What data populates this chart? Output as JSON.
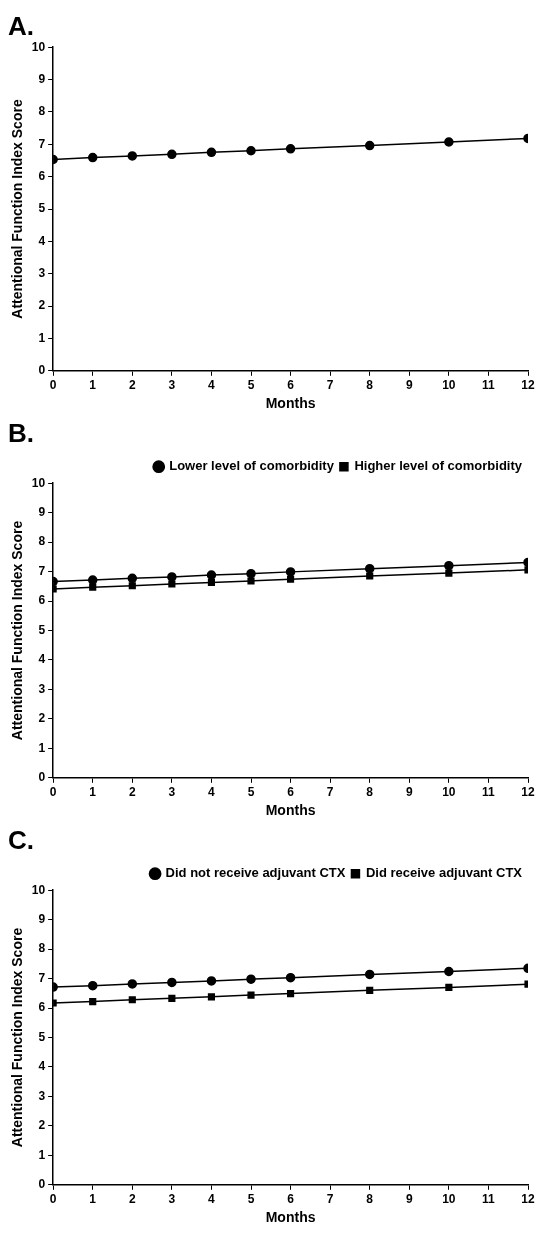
{
  "chart_data": [
    {
      "type": "line",
      "title": "A.",
      "xlabel": "Months",
      "ylabel": "Attentional Function Index Score",
      "x": [
        0,
        1,
        2,
        3,
        4,
        5,
        6,
        8,
        10,
        12
      ],
      "xlim": [
        0,
        12
      ],
      "xticks": [
        0,
        1,
        2,
        3,
        4,
        5,
        6,
        7,
        8,
        9,
        10,
        11,
        12
      ],
      "ylim": [
        0,
        10
      ],
      "yticks": [
        0,
        1,
        2,
        3,
        4,
        5,
        6,
        7,
        8,
        9,
        10
      ],
      "grid": false,
      "legend": false,
      "marker": "circle",
      "line_style": "solid",
      "series": [
        {
          "color": "#000000",
          "values": [
            6.53,
            6.59,
            6.64,
            6.69,
            6.75,
            6.8,
            6.86,
            6.96,
            7.07,
            7.18
          ]
        }
      ]
    },
    {
      "type": "line",
      "title": "B.",
      "xlabel": "Months",
      "ylabel": "Attentional Function Index Score",
      "x": [
        0,
        1,
        2,
        3,
        4,
        5,
        6,
        8,
        10,
        12
      ],
      "xlim": [
        0,
        12
      ],
      "xticks": [
        0,
        1,
        2,
        3,
        4,
        5,
        6,
        7,
        8,
        9,
        10,
        11,
        12
      ],
      "ylim": [
        0,
        10
      ],
      "yticks": [
        0,
        1,
        2,
        3,
        4,
        5,
        6,
        7,
        8,
        9,
        10
      ],
      "grid": false,
      "legend": "top right",
      "line_style": "solid",
      "series": [
        {
          "name": "Lower level of comorbidity",
          "color": "#000000",
          "marker": "circle",
          "values": [
            6.66,
            6.71,
            6.77,
            6.82,
            6.88,
            6.93,
            6.99,
            7.1,
            7.2,
            7.31
          ]
        },
        {
          "name": "Higher level of comorbidity",
          "color": "#000000",
          "marker": "square",
          "values": [
            6.41,
            6.47,
            6.52,
            6.58,
            6.63,
            6.68,
            6.74,
            6.85,
            6.95,
            7.06
          ]
        }
      ]
    },
    {
      "type": "line",
      "title": "C.",
      "xlabel": "Months",
      "ylabel": "Attentional Function Index Score",
      "x": [
        0,
        1,
        2,
        3,
        4,
        5,
        6,
        8,
        10,
        12
      ],
      "xlim": [
        0,
        12
      ],
      "xticks": [
        0,
        1,
        2,
        3,
        4,
        5,
        6,
        7,
        8,
        9,
        10,
        11,
        12
      ],
      "ylim": [
        0,
        10
      ],
      "yticks": [
        0,
        1,
        2,
        3,
        4,
        5,
        6,
        7,
        8,
        9,
        10
      ],
      "grid": false,
      "legend": "top right",
      "line_style": "solid",
      "series": [
        {
          "name": "Did not receive adjuvant CTX",
          "color": "#000000",
          "marker": "circle",
          "values": [
            6.71,
            6.76,
            6.82,
            6.87,
            6.92,
            6.98,
            7.03,
            7.14,
            7.24,
            7.35
          ]
        },
        {
          "name": "Did receive adjuvant CTX",
          "color": "#000000",
          "marker": "square",
          "values": [
            6.17,
            6.22,
            6.28,
            6.33,
            6.38,
            6.44,
            6.49,
            6.6,
            6.7,
            6.81
          ]
        }
      ]
    }
  ]
}
